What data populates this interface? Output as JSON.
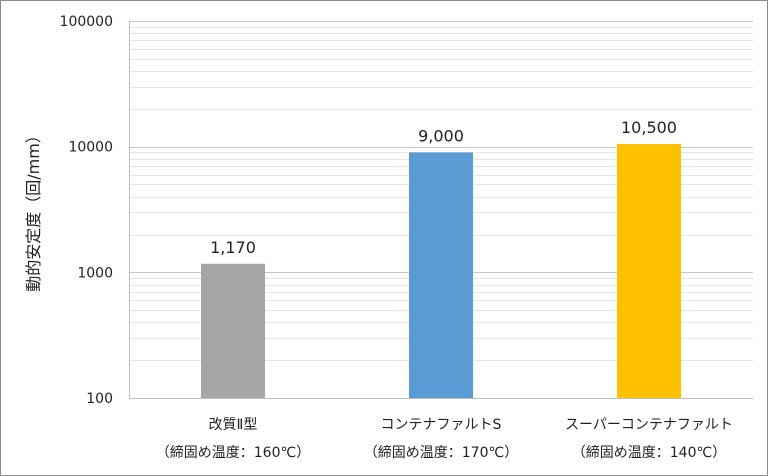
{
  "chart_data": {
    "type": "bar",
    "title": "",
    "xlabel": "",
    "ylabel": "動的安定度（回/mm）",
    "yscale": "log",
    "ylim": [
      100,
      100000
    ],
    "yticks": [
      100,
      1000,
      10000,
      100000
    ],
    "ytick_labels": [
      "100",
      "1000",
      "10000",
      "100000"
    ],
    "grid": true,
    "legend": "none",
    "categories": [
      {
        "line1": "改質Ⅱ型",
        "line2": "（締固め温度：160℃）"
      },
      {
        "line1": "コンテナファルトS",
        "line2": "（締固め温度：170℃）"
      },
      {
        "line1": "スーパーコンテナファルト",
        "line2": "（締固め温度：140℃）"
      }
    ],
    "values": [
      1170,
      9000,
      10500
    ],
    "data_labels": [
      "1,170",
      "9,000",
      "10,500"
    ],
    "colors": [
      "#a5a5a5",
      "#5b9bd5",
      "#ffc000"
    ]
  }
}
